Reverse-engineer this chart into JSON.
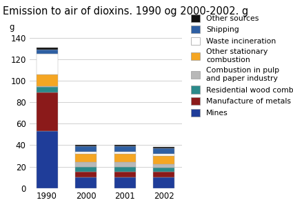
{
  "title": "Emission to air of dioxins. 1990 og 2000-2002. g",
  "ylabel": "g",
  "categories": [
    "1990",
    "2000",
    "2001",
    "2002"
  ],
  "series": [
    {
      "label": "Mines",
      "color": "#1f3d99",
      "values": [
        53,
        10,
        10,
        10
      ]
    },
    {
      "label": "Manufacture of metals",
      "color": "#8b1a1a",
      "values": [
        36,
        5,
        5,
        5
      ]
    },
    {
      "label": "Residential wood combustion",
      "color": "#2a8a8a",
      "values": [
        5,
        5,
        5,
        4
      ]
    },
    {
      "label": "Combustion in pulp\nand paper industry",
      "color": "#b8b8b8",
      "values": [
        1,
        4,
        4,
        3
      ]
    },
    {
      "label": "Other stationary\ncombustion",
      "color": "#f5a623",
      "values": [
        11,
        8,
        8,
        8
      ]
    },
    {
      "label": "Waste incineration",
      "color": "#ffffff",
      "values": [
        19,
        2,
        2,
        2
      ]
    },
    {
      "label": "Shipping",
      "color": "#2e5fa3",
      "values": [
        4,
        5,
        5,
        5
      ]
    },
    {
      "label": "Other sources",
      "color": "#111111",
      "values": [
        2,
        1,
        1,
        1
      ]
    }
  ],
  "ylim": [
    0,
    140
  ],
  "yticks": [
    0,
    20,
    40,
    60,
    80,
    100,
    120,
    140
  ],
  "background_color": "#ffffff",
  "grid_color": "#d0d0d0",
  "bar_width": 0.55,
  "title_fontsize": 10.5,
  "axis_fontsize": 8.5,
  "legend_fontsize": 7.8
}
